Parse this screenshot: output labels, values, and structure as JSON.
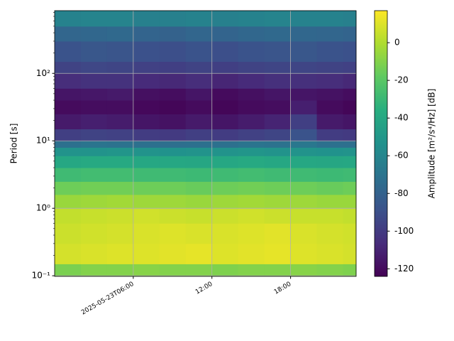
{
  "chart_data": {
    "type": "heatmap",
    "ylabel": "Period [s]",
    "colorbar_label": "Amplitude [m²/s⁴/Hz] [dB]",
    "colormap": "viridis",
    "ylog": true,
    "grid": true,
    "x": [
      "2025-05-23T00:00",
      "2025-05-23T02:00",
      "2025-05-23T04:00",
      "2025-05-23T06:00",
      "2025-05-23T08:00",
      "2025-05-23T10:00",
      "2025-05-23T12:00",
      "2025-05-23T14:00",
      "2025-05-23T16:00",
      "2025-05-23T18:00",
      "2025-05-23T20:00",
      "2025-05-23T22:00",
      "2025-05-23T23:00"
    ],
    "y": [
      0.098,
      0.15,
      0.3,
      0.6,
      1,
      1.6,
      2.5,
      4,
      6,
      8,
      10,
      15,
      25,
      40,
      60,
      100,
      150,
      300,
      500,
      850
    ],
    "values": [
      [
        -12,
        -10,
        -10,
        -9,
        -10,
        -10,
        -11,
        -10,
        -10,
        -9,
        -10,
        -11
      ],
      [
        8,
        9,
        10,
        10,
        11,
        12,
        10,
        11,
        12,
        10,
        9,
        8
      ],
      [
        6,
        7,
        8,
        9,
        10,
        9,
        9,
        10,
        11,
        9,
        8,
        7
      ],
      [
        4,
        5,
        6,
        7,
        6,
        5,
        6,
        7,
        6,
        5,
        5,
        4
      ],
      [
        -5,
        -4,
        -3,
        -4,
        -4,
        -5,
        -4,
        -3,
        -4,
        -4,
        -5,
        -5
      ],
      [
        -15,
        -14,
        -14,
        -15,
        -15,
        -16,
        -15,
        -14,
        -15,
        -15,
        -16,
        -15
      ],
      [
        -28,
        -27,
        -27,
        -28,
        -28,
        -29,
        -28,
        -27,
        -28,
        -28,
        -29,
        -28
      ],
      [
        -40,
        -39,
        -39,
        -40,
        -40,
        -41,
        -40,
        -39,
        -40,
        -40,
        -41,
        -40
      ],
      [
        -52,
        -52,
        -51,
        -52,
        -53,
        -52,
        -52,
        -51,
        -52,
        -52,
        -53,
        -52
      ],
      [
        -72,
        -70,
        -71,
        -72,
        -73,
        -72,
        -72,
        -70,
        -71,
        -68,
        -72,
        -73
      ],
      [
        -98,
        -96,
        -97,
        -99,
        -100,
        -98,
        -99,
        -97,
        -95,
        -88,
        -99,
        -100
      ],
      [
        -114,
        -112,
        -113,
        -116,
        -117,
        -114,
        -116,
        -113,
        -110,
        -98,
        -114,
        -116
      ],
      [
        -120,
        -119,
        -119,
        -121,
        -122,
        -120,
        -122,
        -120,
        -119,
        -112,
        -120,
        -122
      ],
      [
        -116,
        -115,
        -114,
        -118,
        -119,
        -116,
        -120,
        -118,
        -116,
        -116,
        -117,
        -119
      ],
      [
        -106,
        -104,
        -104,
        -107,
        -108,
        -106,
        -109,
        -107,
        -105,
        -105,
        -106,
        -108
      ],
      [
        -96,
        -94,
        -95,
        -97,
        -98,
        -96,
        -98,
        -96,
        -95,
        -95,
        -96,
        -97
      ],
      [
        -88,
        -86,
        -87,
        -89,
        -90,
        -88,
        -90,
        -88,
        -87,
        -86,
        -88,
        -89
      ],
      [
        -78,
        -77,
        -76,
        -79,
        -80,
        -78,
        -79,
        -77,
        -76,
        -77,
        -78,
        -79
      ],
      [
        -62,
        -61,
        -61,
        -63,
        -63,
        -62,
        -63,
        -62,
        -61,
        -62,
        -62,
        -63
      ]
    ],
    "xlim": [
      "2025-05-23T00:00",
      "2025-05-23T23:00"
    ],
    "xticks": [
      "2025-05-23T06:00",
      {
        "value": "2025-05-23T12:00",
        "label": "12:00"
      },
      {
        "value": "2025-05-23T18:00",
        "label": "18:00"
      }
    ],
    "ylim": [
      0.098,
      850
    ],
    "yticks": [
      {
        "value": 0.1,
        "label": "10⁻¹"
      },
      {
        "value": 1,
        "label": "10⁰"
      },
      {
        "value": 10,
        "label": "10¹"
      },
      {
        "value": 100,
        "label": "10²"
      }
    ],
    "clim": [
      -124,
      17
    ],
    "cticks": [
      -120,
      -100,
      -80,
      -60,
      -40,
      -20,
      0
    ]
  }
}
